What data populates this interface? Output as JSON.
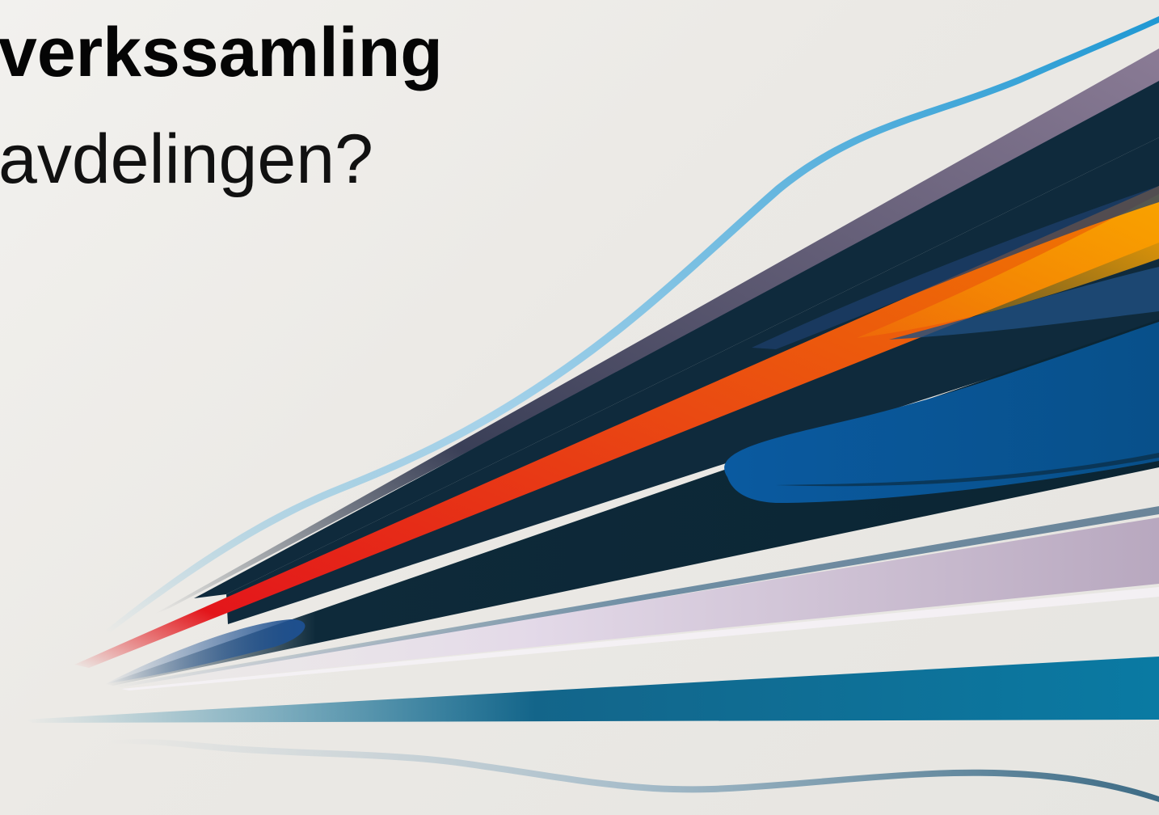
{
  "slide": {
    "title_line_1": "verkssamling",
    "title_line_2": "avdelingen?"
  },
  "colors": {
    "background": "#ebe9e5",
    "title_text": "#050505",
    "navy_stripe": "#0f2a3c",
    "red_stripe": "#e3161b",
    "orange_stripe": "#f29100",
    "blue_stripe": "#0b5a96",
    "teal_stripe": "#0a7aa3",
    "mauve_stripe": "#7d6e88",
    "sky_line": "#3ba3d6"
  },
  "decoration": {
    "graphic": "speed-stripes-graphic"
  }
}
